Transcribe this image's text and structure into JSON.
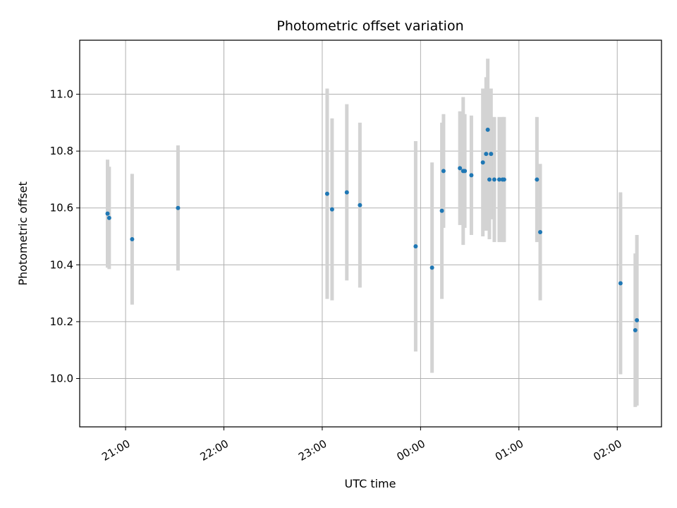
{
  "chart_data": {
    "type": "scatter",
    "title": "Photometric offset variation",
    "xlabel": "UTC time",
    "ylabel": "Photometric offset",
    "x_unit": "UTC time (HH:MM), chart spans midnight",
    "xlim": [
      "20:32",
      "02:27"
    ],
    "ylim": [
      9.83,
      11.19
    ],
    "grid": true,
    "x_ticks": [
      "21:00",
      "22:00",
      "23:00",
      "00:00",
      "01:00",
      "02:00"
    ],
    "y_ticks": [
      "10.0",
      "10.2",
      "10.4",
      "10.6",
      "10.8",
      "11.0"
    ],
    "colors": {
      "point": "#1f77b4",
      "errorbar": "#d3d3d3",
      "grid": "#b0b0b0"
    },
    "points": [
      {
        "x": "20:49",
        "y": 10.58,
        "yerr": 0.19
      },
      {
        "x": "20:50",
        "y": 10.565,
        "yerr": 0.18
      },
      {
        "x": "21:04",
        "y": 10.49,
        "yerr": 0.23
      },
      {
        "x": "21:32",
        "y": 10.6,
        "yerr": 0.22
      },
      {
        "x": "23:03",
        "y": 10.65,
        "yerr": 0.37
      },
      {
        "x": "23:06",
        "y": 10.595,
        "yerr": 0.32
      },
      {
        "x": "23:15",
        "y": 10.655,
        "yerr": 0.31
      },
      {
        "x": "23:23",
        "y": 10.61,
        "yerr": 0.29
      },
      {
        "x": "23:57",
        "y": 10.465,
        "yerr": 0.37
      },
      {
        "x": "00:07",
        "y": 10.39,
        "yerr": 0.37
      },
      {
        "x": "00:13",
        "y": 10.59,
        "yerr": 0.31
      },
      {
        "x": "00:14",
        "y": 10.73,
        "yerr": 0.2
      },
      {
        "x": "00:24",
        "y": 10.74,
        "yerr": 0.2
      },
      {
        "x": "00:26",
        "y": 10.73,
        "yerr": 0.26
      },
      {
        "x": "00:27",
        "y": 10.73,
        "yerr": 0.2
      },
      {
        "x": "00:31",
        "y": 10.715,
        "yerr": 0.21
      },
      {
        "x": "00:38",
        "y": 10.76,
        "yerr": 0.26
      },
      {
        "x": "00:40",
        "y": 10.79,
        "yerr": 0.27
      },
      {
        "x": "00:41",
        "y": 10.875,
        "yerr": 0.25
      },
      {
        "x": "00:42",
        "y": 10.7,
        "yerr": 0.21
      },
      {
        "x": "00:43",
        "y": 10.79,
        "yerr": 0.23
      },
      {
        "x": "00:45",
        "y": 10.7,
        "yerr": 0.22
      },
      {
        "x": "00:48",
        "y": 10.7,
        "yerr": 0.22
      },
      {
        "x": "00:50",
        "y": 10.7,
        "yerr": 0.22
      },
      {
        "x": "00:51",
        "y": 10.7,
        "yerr": 0.22
      },
      {
        "x": "01:11",
        "y": 10.7,
        "yerr": 0.22
      },
      {
        "x": "01:13",
        "y": 10.515,
        "yerr": 0.24
      },
      {
        "x": "02:02",
        "y": 10.335,
        "yerr": 0.32
      },
      {
        "x": "02:11",
        "y": 10.17,
        "yerr": 0.27
      },
      {
        "x": "02:12",
        "y": 10.205,
        "yerr": 0.3
      }
    ]
  }
}
